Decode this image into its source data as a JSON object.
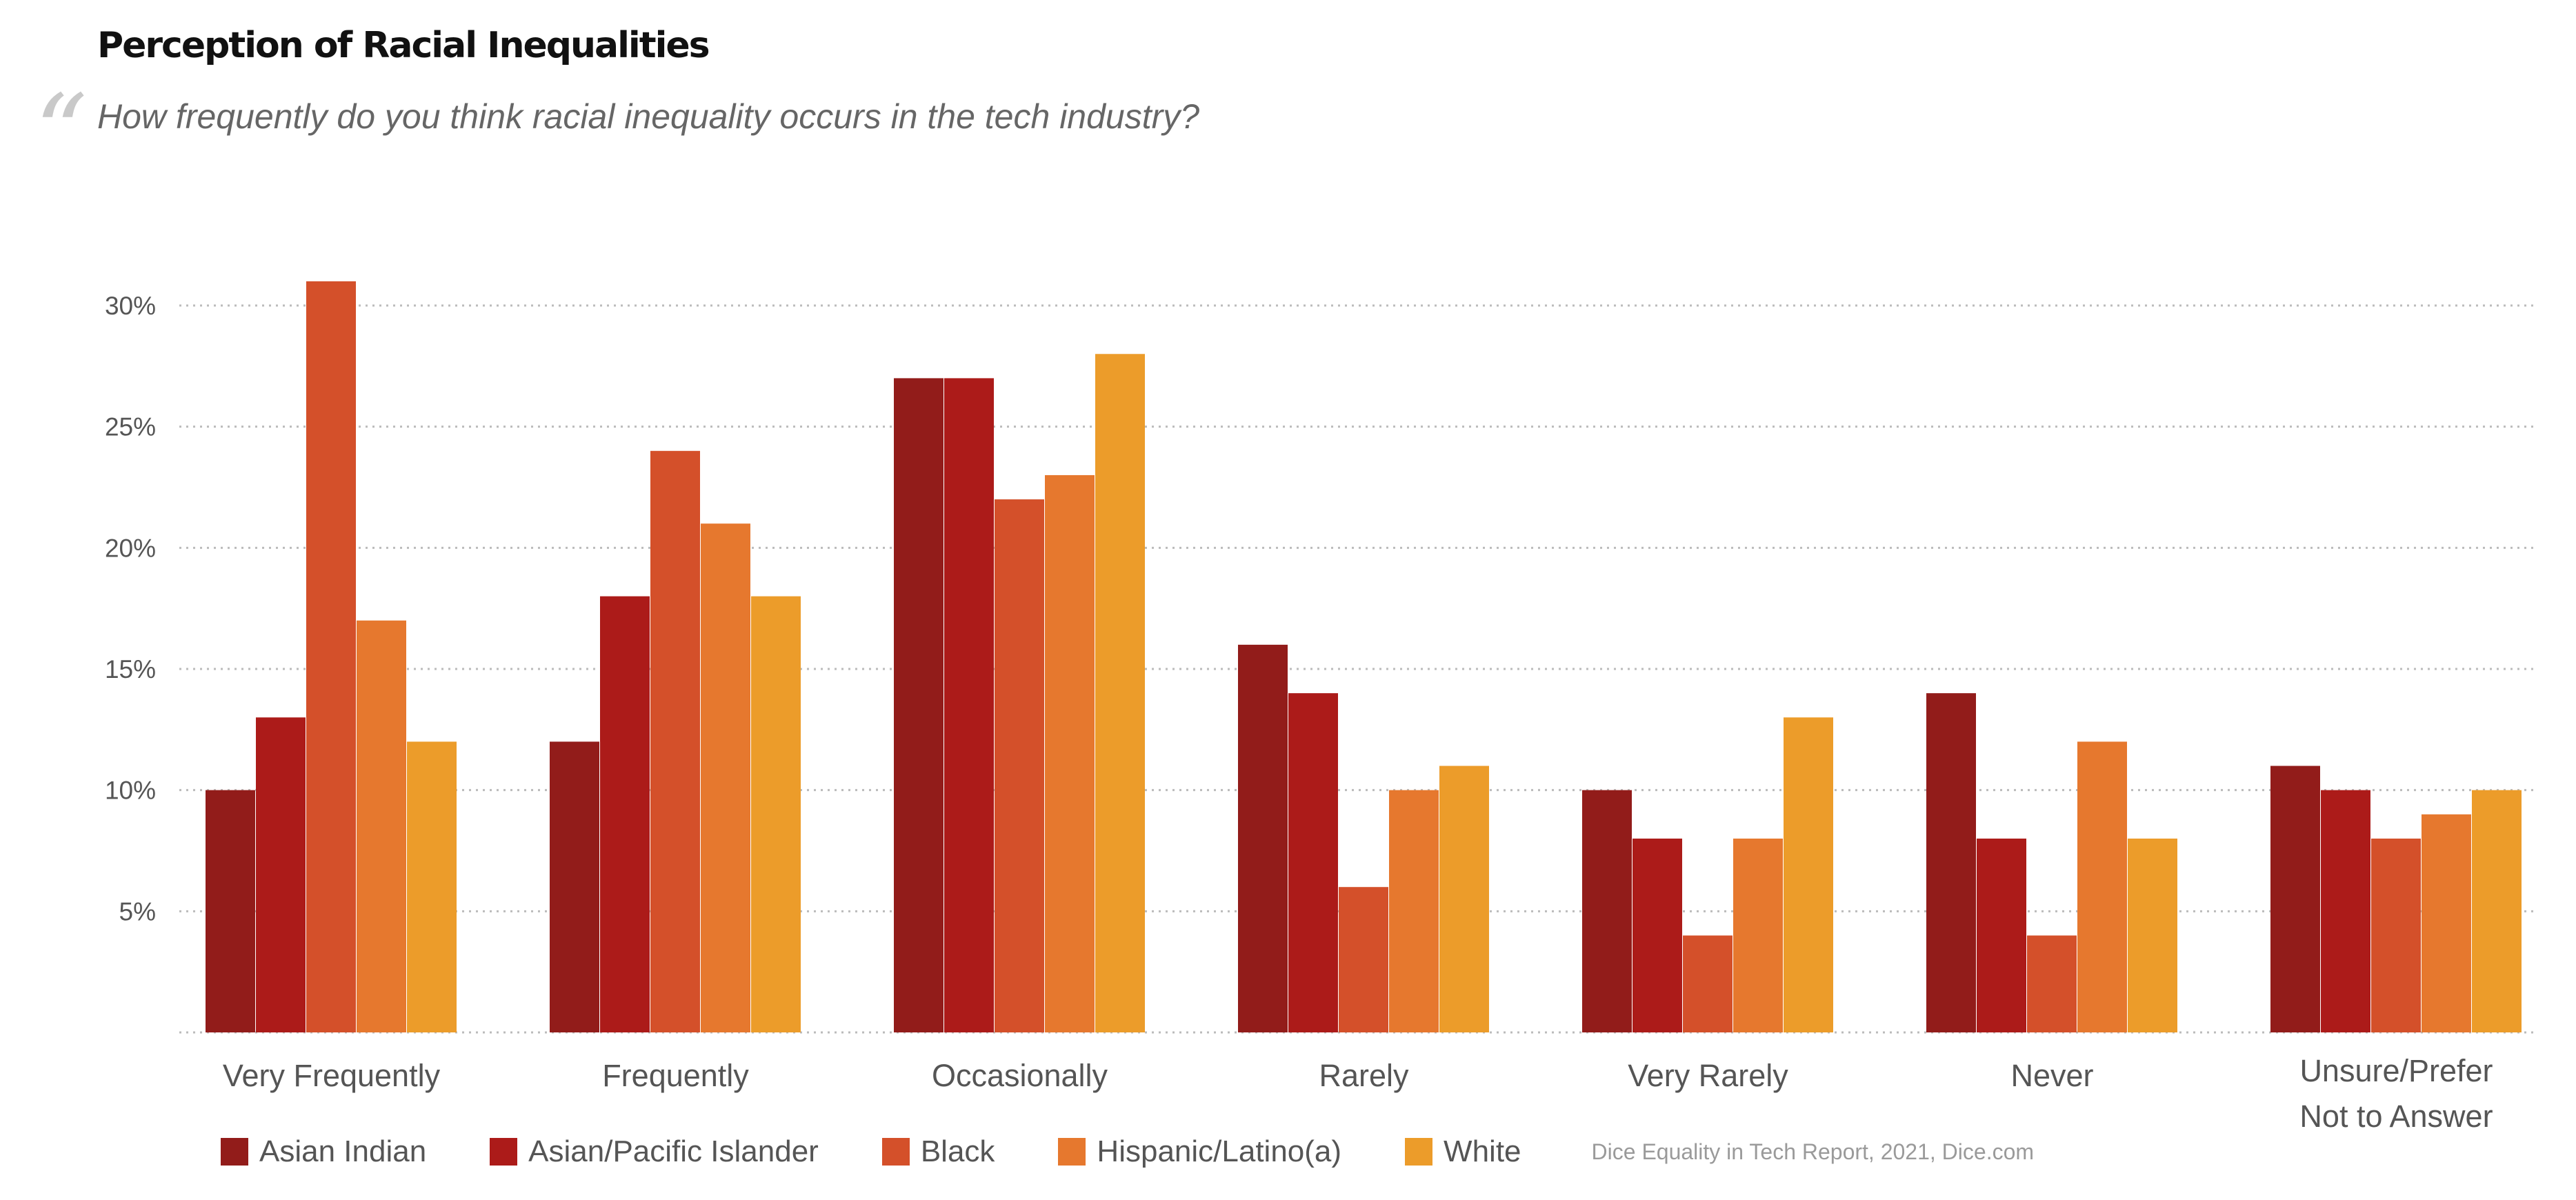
{
  "header": {
    "title": "Perception of Racial Inequalities",
    "quote_glyph": "“",
    "subtitle": "How frequently do you think racial inequality occurs in the tech industry?"
  },
  "source": "Dice Equality in Tech Report, 2021, Dice.com",
  "colors": {
    "asian_indian": "#921C1A",
    "asian_pacific_islander": "#AC1B19",
    "black": "#D4502A",
    "hispanic_latino": "#E6782E",
    "white": "#EC9C2A",
    "gridline": "#bbbbbb"
  },
  "chart_data": {
    "type": "bar",
    "categories": [
      [
        "Very Frequently"
      ],
      [
        "Frequently"
      ],
      [
        "Occasionally"
      ],
      [
        "Rarely"
      ],
      [
        "Very Rarely"
      ],
      [
        "Never"
      ],
      [
        "Unsure/Prefer",
        "Not to Answer"
      ]
    ],
    "series": [
      {
        "name": "Asian Indian",
        "color": "#921C1A",
        "values": [
          10,
          12,
          27,
          16,
          10,
          14,
          11
        ]
      },
      {
        "name": "Asian/Pacific Islander",
        "color": "#AC1B19",
        "values": [
          13,
          18,
          27,
          14,
          8,
          8,
          10
        ]
      },
      {
        "name": "Black",
        "color": "#D4502A",
        "values": [
          31,
          24,
          22,
          6,
          4,
          4,
          8
        ]
      },
      {
        "name": "Hispanic/Latino(a)",
        "color": "#E6782E",
        "values": [
          17,
          21,
          23,
          10,
          8,
          12,
          9
        ]
      },
      {
        "name": "White",
        "color": "#EC9C2A",
        "values": [
          12,
          18,
          28,
          11,
          13,
          8,
          10
        ]
      }
    ],
    "ylim": [
      0,
      30
    ],
    "yticks": [
      5,
      10,
      15,
      20,
      25,
      30
    ],
    "ytick_labels": [
      "5%",
      "10%",
      "15%",
      "20%",
      "25%",
      "30%"
    ],
    "grid": true,
    "legend_position": "bottom"
  }
}
